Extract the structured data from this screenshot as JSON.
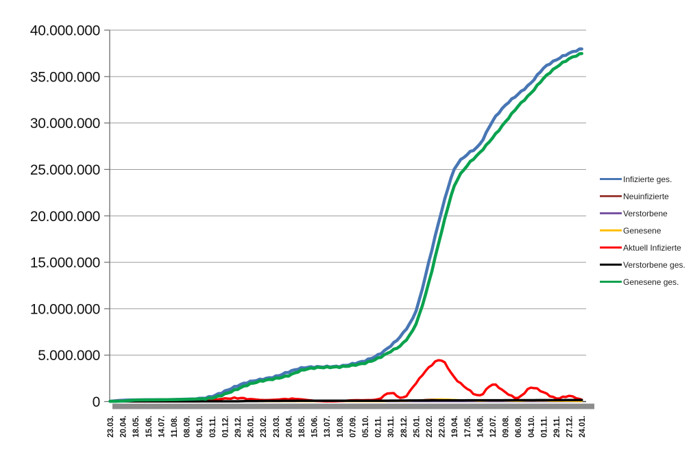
{
  "chart_data": {
    "type": "line",
    "title": "",
    "x_labels": [
      "23.03.",
      "20.04.",
      "18.05.",
      "15.06.",
      "14.07.",
      "11.08.",
      "08.09.",
      "06.10.",
      "03.11.",
      "01.12.",
      "29.12.",
      "26.01.",
      "23.02.",
      "23.03.",
      "20.04.",
      "18.05.",
      "15.06.",
      "13.07.",
      "10.08.",
      "07.09.",
      "05.10.",
      "02.11.",
      "30.11.",
      "28.12.",
      "25.01.",
      "22.02.",
      "22.03.",
      "19.04.",
      "17.05.",
      "14.06.",
      "12.07.",
      "09.08.",
      "06.09.",
      "04.10.",
      "01.11.",
      "29.11.",
      "27.12.",
      "24.01."
    ],
    "y_axis": {
      "min": 0,
      "max": 40000000,
      "step": 5000000,
      "tick_labels": [
        "0",
        "5.000.000",
        "10.000.000",
        "15.000.000",
        "20.000.000",
        "25.000.000",
        "30.000.000",
        "35.000.000",
        "40.000.000"
      ]
    },
    "grid": true,
    "legend_position": "right",
    "series": [
      {
        "name": "Infizierte ges.",
        "color": "#4876B4",
        "line_width": 4.5,
        "values": [
          30000,
          140000,
          180000,
          190000,
          200000,
          220000,
          260000,
          310000,
          560000,
          1100000,
          1700000,
          2150000,
          2420000,
          2700000,
          3190000,
          3600000,
          3720000,
          3750000,
          3800000,
          4050000,
          4400000,
          5000000,
          6000000,
          7400000,
          9800000,
          15000000,
          20500000,
          25000000,
          26600000,
          27700000,
          30200000,
          31900000,
          33100000,
          34300000,
          35900000,
          36800000,
          37500000,
          38000000
        ]
      },
      {
        "name": "Neuinfizierte",
        "color": "#9B3D38",
        "line_width": 2.5,
        "values": [
          5000,
          4000,
          1000,
          1000,
          1000,
          1000,
          2000,
          4000,
          20000,
          25000,
          22000,
          15000,
          8000,
          15000,
          22000,
          12000,
          3000,
          1000,
          3000,
          10000,
          8000,
          20000,
          70000,
          50000,
          120000,
          220000,
          250000,
          180000,
          90000,
          60000,
          120000,
          80000,
          50000,
          120000,
          80000,
          40000,
          50000,
          20000
        ]
      },
      {
        "name": "Verstorbene",
        "color": "#7852A2",
        "line_width": 2.5,
        "values": [
          500,
          1000,
          1000,
          500,
          300,
          300,
          400,
          600,
          2000,
          4000,
          5000,
          5000,
          3000,
          2000,
          2000,
          2000,
          1000,
          500,
          500,
          800,
          800,
          1500,
          2500,
          2500,
          2000,
          1500,
          1500,
          1000,
          800,
          500,
          800,
          800,
          600,
          800,
          1000,
          1000,
          1000,
          800
        ]
      },
      {
        "name": "Genesene",
        "color": "#FFC000",
        "line_width": 2.5,
        "values": [
          2000,
          5000,
          2000,
          1000,
          1000,
          1000,
          2000,
          3000,
          10000,
          20000,
          22000,
          18000,
          10000,
          12000,
          20000,
          15000,
          5000,
          2000,
          2000,
          8000,
          8000,
          15000,
          50000,
          60000,
          100000,
          180000,
          240000,
          200000,
          120000,
          70000,
          100000,
          90000,
          60000,
          100000,
          90000,
          50000,
          50000,
          30000
        ]
      },
      {
        "name": "Aktuell Infizierte",
        "color": "#FF0000",
        "line_width": 3.5,
        "values": [
          50000,
          80000,
          20000,
          10000,
          10000,
          12000,
          20000,
          40000,
          170000,
          300000,
          380000,
          280000,
          160000,
          200000,
          300000,
          240000,
          90000,
          30000,
          50000,
          140000,
          150000,
          250000,
          950000,
          400000,
          2000000,
          3650000,
          4450000,
          2600000,
          1400000,
          650000,
          1850000,
          1000000,
          400000,
          1500000,
          1000000,
          350000,
          600000,
          200000
        ]
      },
      {
        "name": "Verstorbene ges.",
        "color": "#000000",
        "line_width": 3.5,
        "values": [
          1000,
          5000,
          8000,
          9000,
          9000,
          9000,
          9000,
          10000,
          11000,
          17000,
          32000,
          54000,
          69000,
          75000,
          81000,
          87000,
          90000,
          91000,
          92000,
          92000,
          94000,
          96000,
          101000,
          111000,
          117000,
          121000,
          127000,
          133000,
          137000,
          139000,
          141000,
          144000,
          147000,
          150000,
          153000,
          157000,
          160000,
          165000
        ]
      },
      {
        "name": "Genesene ges.",
        "color": "#0AA24E",
        "line_width": 4.5,
        "values": [
          10000,
          60000,
          160000,
          180000,
          190000,
          210000,
          240000,
          280000,
          390000,
          800000,
          1350000,
          1900000,
          2250000,
          2480000,
          2800000,
          3350000,
          3620000,
          3690000,
          3730000,
          3900000,
          4150000,
          4650000,
          5400000,
          6300000,
          8400000,
          12800000,
          18300000,
          23200000,
          25400000,
          26800000,
          28400000,
          30100000,
          31800000,
          33200000,
          34800000,
          36000000,
          36900000,
          37500000
        ]
      }
    ],
    "palette": {
      "gridline": "#9A9A9A",
      "y_axis_line": "#6B6B6B",
      "x_axis_line": "#404040",
      "axis_shadow": "#8C8C8C",
      "label_text": "#111111",
      "legend_text": "#1F1F1F",
      "background": "#FFFFFF"
    }
  }
}
